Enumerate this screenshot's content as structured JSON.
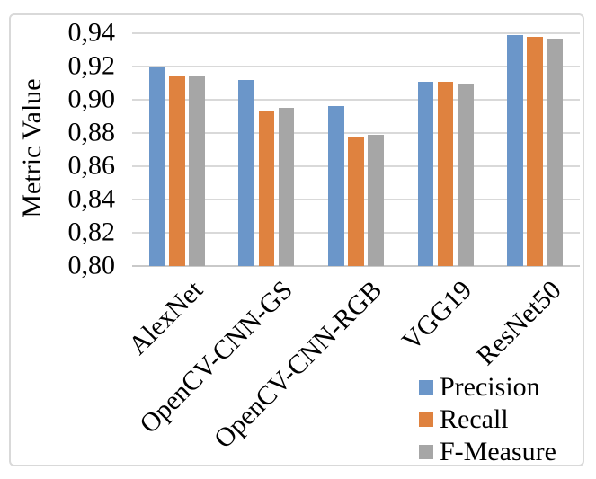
{
  "figure": {
    "background_color": "#FFFFFF",
    "border_color": "#D9D9D9"
  },
  "chart_data": {
    "type": "bar",
    "title": "",
    "xlabel": "",
    "ylabel": "Metric Value",
    "categories": [
      "AlexNet",
      "OpenCV-CNN-GS",
      "OpenCV-CNN-RGB",
      "VGG19",
      "ResNet50"
    ],
    "series": [
      {
        "name": "Precision",
        "color": "#6B96C9",
        "values": [
          0.92,
          0.912,
          0.896,
          0.911,
          0.939
        ]
      },
      {
        "name": "Recall",
        "color": "#DF823F",
        "values": [
          0.914,
          0.893,
          0.878,
          0.911,
          0.938
        ]
      },
      {
        "name": "F-Measure",
        "color": "#A6A6A6",
        "values": [
          0.914,
          0.895,
          0.879,
          0.91,
          0.937
        ]
      }
    ],
    "ylim": [
      0.8,
      0.94
    ],
    "ytick_step": 0.02,
    "ytick_labels": [
      "0,80",
      "0,82",
      "0,84",
      "0,86",
      "0,88",
      "0,90",
      "0,92",
      "0,94"
    ],
    "decimal_separator": ",",
    "grid": "horizontal",
    "gridline_color": "#D9D9D9",
    "axisline_color": "#C9C9C9",
    "legend_position": "bottom-right",
    "x_labels_rotation_deg": -45
  }
}
